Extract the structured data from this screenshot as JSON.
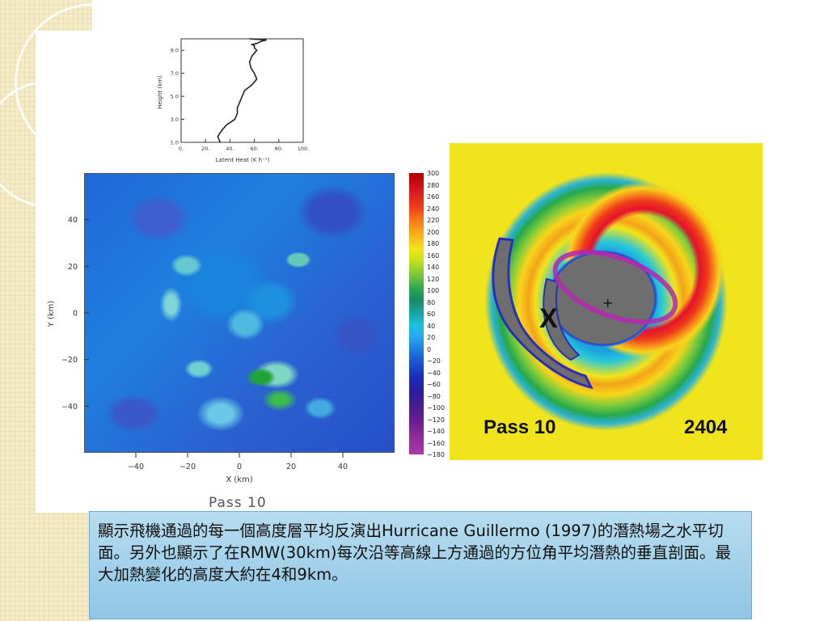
{
  "slide": {
    "caption": "顯示飛機通過的每一個高度層平均反演出Hurricane Guillermo (1997)的潛熱場之水平切面。另外也顯示了在RMW(30km)每次沿等高線上方通過的方位角平均潛熱的垂直剖面。最大加熱變化的高度大約在4和9km。",
    "field_caption": "Pass 10"
  },
  "profile_plot": {
    "ylabel": "Height (km)",
    "xlabel": "Latent Heat (K h⁻¹)",
    "yticks": [
      "9.0",
      "7.0",
      "5.0",
      "3.0",
      "1.0"
    ],
    "xticks": [
      "0.",
      "20.",
      "40.",
      "60.",
      "80.",
      "100."
    ]
  },
  "field_plot": {
    "ylabel": "Y (km)",
    "xlabel": "X (km)",
    "yticks": [
      "40",
      "20",
      "0",
      "−20",
      "−40"
    ],
    "xticks": [
      "−40",
      "−20",
      "0",
      "20",
      "40"
    ]
  },
  "colorbar": {
    "labels": [
      "300",
      "280",
      "260",
      "240",
      "220",
      "200",
      "180",
      "160",
      "140",
      "120",
      "100",
      "80",
      "60",
      "40",
      "20",
      "0",
      "−20",
      "−40",
      "−60",
      "−80",
      "−100",
      "−120",
      "−140",
      "−160",
      "−180"
    ]
  },
  "radar": {
    "pass_label": "Pass 10",
    "time_label": "2404",
    "marker_x": "X",
    "center_mark": "+"
  },
  "chart_data": [
    {
      "type": "line",
      "xlabel": "Latent Heat (K h⁻¹)",
      "ylabel": "Height (km)",
      "xlim": [
        0,
        100
      ],
      "ylim": [
        1,
        10
      ],
      "series": [
        {
          "x": [
            32,
            30,
            33,
            37,
            44,
            46,
            46,
            48,
            50,
            52,
            58,
            62,
            60,
            57,
            56,
            58,
            62,
            60,
            60,
            58,
            62,
            64,
            66,
            70,
            56
          ],
          "y": [
            1.0,
            1.5,
            2.0,
            2.5,
            3.0,
            3.5,
            4.0,
            4.5,
            5.0,
            5.5,
            6.0,
            6.5,
            7.0,
            7.5,
            8.0,
            8.5,
            9.0,
            9.2,
            9.4,
            9.5,
            9.6,
            9.7,
            9.8,
            9.9,
            10.0
          ]
        }
      ]
    }
  ]
}
